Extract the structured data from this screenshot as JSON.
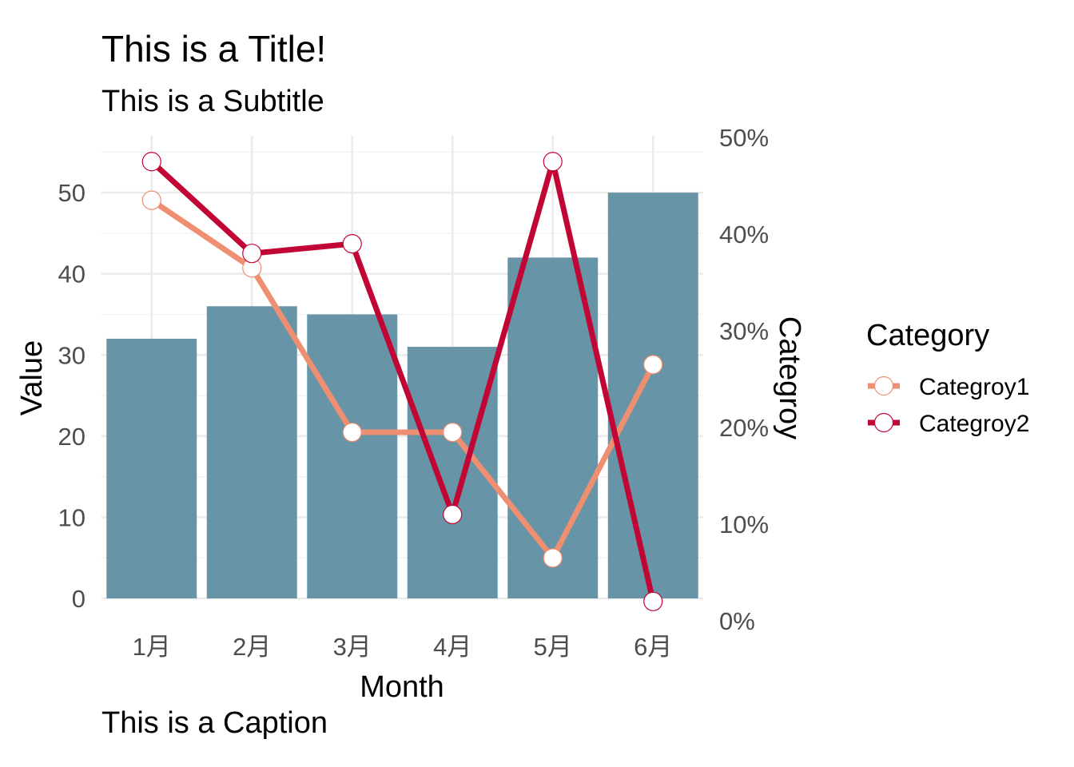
{
  "chart_data": {
    "type": "bar+line",
    "title": "This is a Title!",
    "subtitle": "This is a Subtitle",
    "caption": "This is a Caption",
    "xlabel": "Month",
    "ylabel": "Value",
    "y2label": "Categroy",
    "categories": [
      "1月",
      "2月",
      "3月",
      "4月",
      "5月",
      "6月"
    ],
    "bars": {
      "values": [
        32,
        36,
        35,
        31,
        42,
        50
      ],
      "color": "#6794a7"
    },
    "ylim": [
      0,
      57
    ],
    "yticks": [
      0,
      10,
      20,
      30,
      40,
      50
    ],
    "y2lim": [
      0,
      0.5
    ],
    "y2ticks": [
      0,
      0.1,
      0.2,
      0.3,
      0.4,
      0.5
    ],
    "y2ticklabels": [
      "0%",
      "10%",
      "20%",
      "30%",
      "40%",
      "50%"
    ],
    "series": [
      {
        "name": "Categroy1",
        "color": "#ee8f71",
        "values": [
          0.435,
          0.365,
          0.195,
          0.195,
          0.065,
          0.265
        ]
      },
      {
        "name": "Categroy2",
        "color": "#c10534",
        "values": [
          0.475,
          0.38,
          0.39,
          0.11,
          0.475,
          0.02
        ]
      }
    ],
    "legend": {
      "title": "Category",
      "position": "right"
    },
    "grid": true
  }
}
